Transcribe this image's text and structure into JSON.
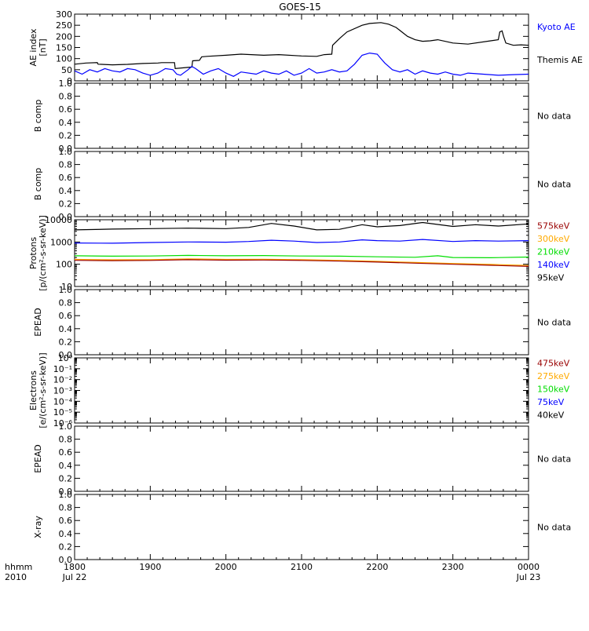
{
  "title": "GOES-15",
  "xaxis": {
    "corner_top": "hhmm",
    "corner_bottom": "2010",
    "ticks": [
      {
        "t": 0,
        "label": "1800",
        "sub": "Jul 22"
      },
      {
        "t": 1,
        "label": "1900",
        "sub": ""
      },
      {
        "t": 2,
        "label": "2000",
        "sub": ""
      },
      {
        "t": 3,
        "label": "2100",
        "sub": ""
      },
      {
        "t": 4,
        "label": "2200",
        "sub": ""
      },
      {
        "t": 5,
        "label": "2300",
        "sub": ""
      },
      {
        "t": 6,
        "label": "0000",
        "sub": "Jul 23"
      }
    ]
  },
  "colors": {
    "black": "#000000",
    "blue": "#0000ff",
    "green": "#00dd00",
    "orange": "#ffaa00",
    "red": "#cc0000",
    "darkred": "#990000"
  },
  "chart_data": [
    {
      "id": "ae",
      "type": "line",
      "ylabel": [
        "AE index",
        "[nT]"
      ],
      "yscale": "linear",
      "ylim": [
        0,
        300
      ],
      "yticks": [
        {
          "v": 0,
          "label": "0"
        },
        {
          "v": 50,
          "label": "50"
        },
        {
          "v": 100,
          "label": "100"
        },
        {
          "v": 150,
          "label": "150"
        },
        {
          "v": 200,
          "label": "200"
        },
        {
          "v": 250,
          "label": "250"
        },
        {
          "v": 300,
          "label": "300"
        }
      ],
      "legend": [
        {
          "text": "Kyoto AE",
          "color": "#0000ff"
        },
        {
          "text": "Themis AE",
          "color": "#000000"
        }
      ],
      "series": [
        {
          "name": "Themis AE",
          "color": "#000000",
          "x": [
            0,
            0.15,
            0.3,
            0.31,
            0.5,
            0.7,
            0.9,
            1.1,
            1.15,
            1.32,
            1.33,
            1.55,
            1.56,
            1.65,
            1.68,
            1.75,
            2.0,
            2.2,
            2.5,
            2.7,
            3.0,
            3.2,
            3.3,
            3.4,
            3.41,
            3.5,
            3.6,
            3.8,
            3.9,
            4.05,
            4.15,
            4.25,
            4.4,
            4.5,
            4.6,
            4.7,
            4.8,
            5.0,
            5.2,
            5.5,
            5.6,
            5.62,
            5.65,
            5.67,
            5.7,
            5.8,
            5.9,
            6.0
          ],
          "y": [
            75,
            80,
            82,
            75,
            72,
            74,
            78,
            80,
            82,
            82,
            55,
            62,
            90,
            92,
            108,
            110,
            115,
            120,
            115,
            118,
            112,
            110,
            118,
            120,
            160,
            190,
            220,
            250,
            258,
            262,
            255,
            240,
            200,
            185,
            178,
            180,
            185,
            170,
            165,
            180,
            185,
            220,
            225,
            200,
            170,
            160,
            162,
            160
          ]
        },
        {
          "name": "Kyoto AE",
          "color": "#0000ff",
          "x": [
            0,
            0.1,
            0.2,
            0.3,
            0.4,
            0.5,
            0.6,
            0.7,
            0.8,
            0.9,
            1.0,
            1.1,
            1.2,
            1.3,
            1.35,
            1.4,
            1.5,
            1.55,
            1.6,
            1.7,
            1.8,
            1.9,
            2.0,
            2.1,
            2.2,
            2.4,
            2.5,
            2.6,
            2.7,
            2.8,
            2.9,
            3.0,
            3.1,
            3.2,
            3.3,
            3.4,
            3.5,
            3.6,
            3.7,
            3.8,
            3.9,
            4.0,
            4.05,
            4.1,
            4.2,
            4.3,
            4.4,
            4.5,
            4.6,
            4.7,
            4.8,
            4.9,
            5.0,
            5.1,
            5.2,
            5.4,
            5.6,
            5.8,
            6.0
          ],
          "y": [
            45,
            30,
            50,
            40,
            55,
            45,
            40,
            55,
            50,
            35,
            25,
            35,
            55,
            50,
            30,
            25,
            50,
            65,
            55,
            30,
            45,
            55,
            35,
            20,
            40,
            30,
            45,
            35,
            30,
            45,
            25,
            35,
            55,
            35,
            40,
            50,
            40,
            45,
            75,
            115,
            125,
            120,
            100,
            80,
            50,
            40,
            50,
            30,
            45,
            35,
            30,
            40,
            30,
            25,
            35,
            30,
            25,
            28,
            30
          ]
        }
      ]
    },
    {
      "id": "bcomp1",
      "type": "line",
      "ylabel": [
        "B comp"
      ],
      "yscale": "linear",
      "ylim": [
        0,
        1
      ],
      "yticks": [
        {
          "v": 0,
          "label": "0.0"
        },
        {
          "v": 0.2,
          "label": "0.2"
        },
        {
          "v": 0.4,
          "label": "0.4"
        },
        {
          "v": 0.6,
          "label": "0.6"
        },
        {
          "v": 0.8,
          "label": "0.8"
        },
        {
          "v": 1,
          "label": "1.0"
        }
      ],
      "legend": [
        {
          "text": "No data",
          "color": "#000000"
        }
      ],
      "series": []
    },
    {
      "id": "bcomp2",
      "type": "line",
      "ylabel": [
        "B comp"
      ],
      "yscale": "linear",
      "ylim": [
        0,
        1
      ],
      "yticks": [
        {
          "v": 0,
          "label": "0.0"
        },
        {
          "v": 0.2,
          "label": "0.2"
        },
        {
          "v": 0.4,
          "label": "0.4"
        },
        {
          "v": 0.6,
          "label": "0.6"
        },
        {
          "v": 0.8,
          "label": "0.8"
        },
        {
          "v": 1,
          "label": "1.0"
        }
      ],
      "legend": [
        {
          "text": "No data",
          "color": "#000000"
        }
      ],
      "series": []
    },
    {
      "id": "protons",
      "type": "line",
      "ylabel": [
        "Protons",
        "[p/(cm²-s-sr-keV)]"
      ],
      "yscale": "log",
      "ylim": [
        10,
        10000
      ],
      "yticks": [
        {
          "v": 10,
          "label": "10"
        },
        {
          "v": 100,
          "label": "100"
        },
        {
          "v": 1000,
          "label": "1000"
        },
        {
          "v": 10000,
          "label": "10000"
        }
      ],
      "legend": [
        {
          "text": "575keV",
          "color": "#990000"
        },
        {
          "text": "300keV",
          "color": "#ffaa00"
        },
        {
          "text": "210keV",
          "color": "#00dd00"
        },
        {
          "text": "140keV",
          "color": "#0000ff"
        },
        {
          "text": "95keV",
          "color": "#000000"
        }
      ],
      "series": [
        {
          "name": "95keV",
          "color": "#000000",
          "x": [
            0,
            0.5,
            1.0,
            1.5,
            2.0,
            2.3,
            2.6,
            2.9,
            3.2,
            3.5,
            3.8,
            4.0,
            4.3,
            4.6,
            5.0,
            5.3,
            5.6,
            6.0
          ],
          "y": [
            3500,
            3800,
            4000,
            4200,
            4000,
            4500,
            6800,
            5200,
            3500,
            3700,
            6000,
            4800,
            5500,
            7500,
            5000,
            6000,
            5200,
            6500
          ]
        },
        {
          "name": "140keV",
          "color": "#0000ff",
          "x": [
            0,
            0.5,
            1.0,
            1.5,
            2.0,
            2.3,
            2.6,
            2.9,
            3.2,
            3.5,
            3.8,
            4.0,
            4.3,
            4.6,
            5.0,
            5.3,
            5.6,
            6.0
          ],
          "y": [
            900,
            880,
            950,
            1000,
            980,
            1050,
            1200,
            1100,
            950,
            1000,
            1250,
            1150,
            1100,
            1300,
            1050,
            1150,
            1100,
            1150
          ]
        },
        {
          "name": "210keV",
          "color": "#00dd00",
          "x": [
            0,
            0.5,
            1.0,
            1.5,
            2.0,
            2.5,
            3.0,
            3.5,
            4.0,
            4.5,
            4.8,
            5.0,
            5.5,
            6.0
          ],
          "y": [
            240,
            230,
            235,
            250,
            240,
            245,
            235,
            230,
            215,
            205,
            240,
            200,
            195,
            210
          ]
        },
        {
          "name": "300keV",
          "color": "#ffaa00",
          "x": [
            0,
            0.5,
            1.0,
            1.5,
            2.0,
            2.5,
            3.0,
            3.5,
            4.0,
            4.5,
            5.0,
            5.5,
            6.0
          ],
          "y": [
            165,
            158,
            160,
            175,
            165,
            168,
            160,
            150,
            135,
            120,
            108,
            98,
            88
          ]
        },
        {
          "name": "575keV",
          "color": "#990000",
          "x": [
            0,
            0.5,
            1.0,
            1.5,
            2.0,
            2.5,
            3.0,
            3.5,
            4.0,
            4.5,
            5.0,
            5.5,
            6.0
          ],
          "y": [
            150,
            145,
            148,
            160,
            152,
            155,
            148,
            138,
            125,
            112,
            100,
            90,
            80
          ]
        }
      ]
    },
    {
      "id": "epead1",
      "type": "line",
      "ylabel": [
        "EPEAD"
      ],
      "yscale": "linear",
      "ylim": [
        0,
        1
      ],
      "yticks": [
        {
          "v": 0,
          "label": "0.0"
        },
        {
          "v": 0.2,
          "label": "0.2"
        },
        {
          "v": 0.4,
          "label": "0.4"
        },
        {
          "v": 0.6,
          "label": "0.6"
        },
        {
          "v": 0.8,
          "label": "0.8"
        },
        {
          "v": 1,
          "label": "1.0"
        }
      ],
      "legend": [
        {
          "text": "No data",
          "color": "#000000"
        }
      ],
      "series": []
    },
    {
      "id": "electrons",
      "type": "line",
      "ylabel": [
        "Electrons",
        "[e/(cm²-s-sr-keV)]"
      ],
      "yscale": "log",
      "ylim": [
        1e-06,
        1
      ],
      "yticks": [
        {
          "v": 1,
          "label": "10⁰"
        },
        {
          "v": 0.1,
          "label": "10⁻¹"
        },
        {
          "v": 0.01,
          "label": "10⁻²"
        },
        {
          "v": 0.001,
          "label": "10⁻³"
        },
        {
          "v": 0.0001,
          "label": "10⁻⁴"
        },
        {
          "v": 1e-05,
          "label": "10⁻⁵"
        },
        {
          "v": 1e-06,
          "label": "10⁻⁶"
        }
      ],
      "legend": [
        {
          "text": "475keV",
          "color": "#990000"
        },
        {
          "text": "275keV",
          "color": "#ffaa00"
        },
        {
          "text": "150keV",
          "color": "#00dd00"
        },
        {
          "text": "75keV",
          "color": "#0000ff"
        },
        {
          "text": "40keV",
          "color": "#000000"
        }
      ],
      "series": []
    },
    {
      "id": "epead2",
      "type": "line",
      "ylabel": [
        "EPEAD"
      ],
      "yscale": "linear",
      "ylim": [
        0,
        1
      ],
      "yticks": [
        {
          "v": 0,
          "label": "0.0"
        },
        {
          "v": 0.2,
          "label": "0.2"
        },
        {
          "v": 0.4,
          "label": "0.4"
        },
        {
          "v": 0.6,
          "label": "0.6"
        },
        {
          "v": 0.8,
          "label": "0.8"
        },
        {
          "v": 1,
          "label": "1.0"
        }
      ],
      "legend": [
        {
          "text": "No data",
          "color": "#000000"
        }
      ],
      "series": []
    },
    {
      "id": "xray",
      "type": "line",
      "ylabel": [
        "X-ray"
      ],
      "yscale": "linear",
      "ylim": [
        0,
        1
      ],
      "yticks": [
        {
          "v": 0,
          "label": "0.0"
        },
        {
          "v": 0.2,
          "label": "0.2"
        },
        {
          "v": 0.4,
          "label": "0.4"
        },
        {
          "v": 0.6,
          "label": "0.6"
        },
        {
          "v": 0.8,
          "label": "0.8"
        },
        {
          "v": 1,
          "label": "1.0"
        }
      ],
      "legend": [
        {
          "text": "No data",
          "color": "#000000"
        }
      ],
      "series": []
    }
  ]
}
